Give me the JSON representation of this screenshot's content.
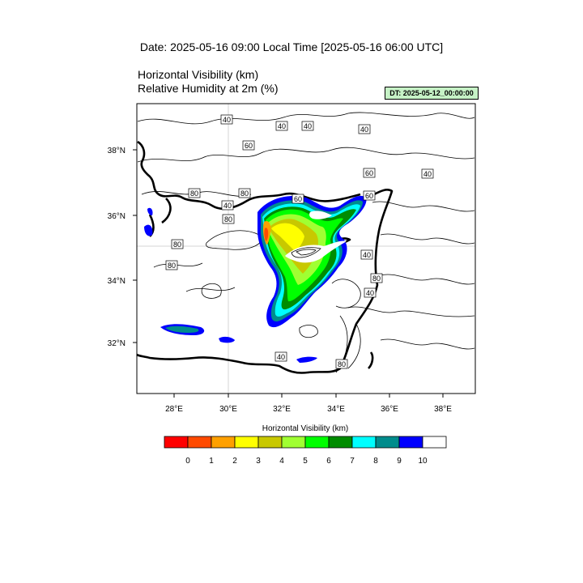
{
  "header": {
    "date_title": "Date: 2025-05-16  09:00 Local Time [2025-05-16  06:00 UTC]",
    "field1_title": "Horizontal Visibility   (km)",
    "field2_title": "Relative Humidity at 2m   (%)",
    "dt_badge": "DT: 2025-05-12_00:00:00",
    "dt_badge_color": "#c6f2c6"
  },
  "map": {
    "lon_ticks": [
      "28°E",
      "30°E",
      "32°E",
      "34°E",
      "36°E",
      "38°E"
    ],
    "lat_ticks": [
      "38°N",
      "36°N",
      "34°N",
      "32°N"
    ],
    "contour_labels": [
      "40",
      "40",
      "40",
      "60",
      "40",
      "60",
      "40",
      "60",
      "80",
      "60",
      "80",
      "40",
      "80",
      "80",
      "80",
      "40",
      "80",
      "40",
      "40",
      "80"
    ]
  },
  "colorbar": {
    "title": "Horizontal Visibility  (km)",
    "colors": [
      "#ff0000",
      "#ff4a00",
      "#ffa000",
      "#ffff00",
      "#c8c800",
      "#a0ff32",
      "#00ff00",
      "#008c00",
      "#00ffff",
      "#008c8c",
      "#0000ff",
      "#ffffff"
    ],
    "tick_labels": [
      "0",
      "1",
      "2",
      "3",
      "4",
      "5",
      "6",
      "7",
      "8",
      "9",
      "10"
    ]
  }
}
